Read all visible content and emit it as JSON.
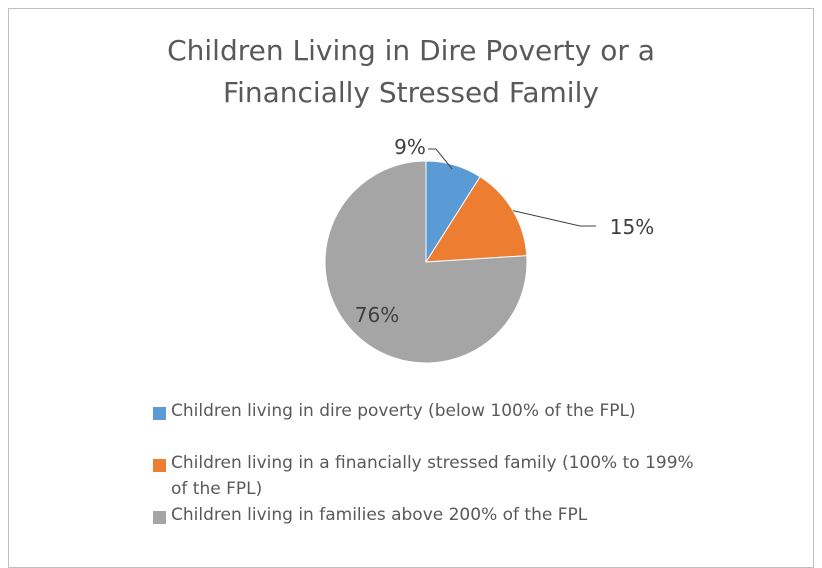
{
  "chart_data": {
    "type": "pie",
    "title": "Children Living in Dire Poverty or a\nFinancially Stressed Family",
    "slices": [
      {
        "label": "Children living in dire poverty (below 100% of the FPL)",
        "value": 9,
        "data_label": "9%",
        "color": "#5b9bd5"
      },
      {
        "label": "Children living in a financially stressed family (100% to 199% of the FPL)",
        "value": 15,
        "data_label": "15%",
        "color": "#ed7d31"
      },
      {
        "label": "Children living in families above 200% of the FPL",
        "value": 76,
        "data_label": "76%",
        "color": "#a5a5a5"
      }
    ],
    "legend_position": "bottom"
  }
}
